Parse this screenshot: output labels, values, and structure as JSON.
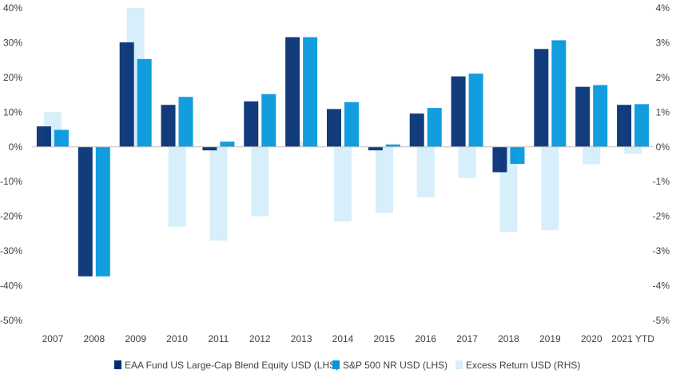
{
  "chart_data": {
    "type": "bar",
    "categories": [
      "2007",
      "2008",
      "2009",
      "2010",
      "2011",
      "2012",
      "2013",
      "2014",
      "2015",
      "2016",
      "2017",
      "2018",
      "2019",
      "2020",
      "2021 YTD"
    ],
    "series": [
      {
        "name": "EAA Fund US Large-Cap Blend Equity USD (LHS)",
        "axis": "left",
        "color": "#002D72",
        "values": [
          5.9,
          -37.3,
          30.1,
          12.1,
          -1.0,
          13.1,
          31.6,
          10.9,
          -1.0,
          9.6,
          20.3,
          -7.3,
          28.2,
          17.3,
          12.1
        ]
      },
      {
        "name": "S&P 500 NR USD (LHS)",
        "axis": "left",
        "color": "#0096DC",
        "values": [
          4.9,
          -37.3,
          25.3,
          14.4,
          1.5,
          15.2,
          31.6,
          12.9,
          0.7,
          11.2,
          21.1,
          -4.9,
          30.7,
          17.8,
          12.3
        ]
      },
      {
        "name": "Excess Return USD (RHS)",
        "axis": "right",
        "color": "#D6EFFA",
        "values": [
          1.0,
          0.0,
          4.0,
          -2.3,
          -2.7,
          -2.0,
          0.15,
          -2.15,
          -1.9,
          -1.45,
          -0.9,
          -2.45,
          -2.4,
          -0.5,
          -0.2
        ]
      }
    ],
    "y_left": {
      "min": -50,
      "max": 40,
      "step": 10,
      "tick_labels": [
        "-50%",
        "-40%",
        "-30%",
        "-20%",
        "-10%",
        "0%",
        "10%",
        "20%",
        "30%",
        "40%"
      ]
    },
    "y_right": {
      "min": -5,
      "max": 4,
      "step": 1,
      "tick_labels": [
        "-5%",
        "-4%",
        "-3%",
        "-2%",
        "-1%",
        "0%",
        "1%",
        "2%",
        "3%",
        "4%"
      ]
    },
    "legend_position": "bottom",
    "grid": false
  }
}
